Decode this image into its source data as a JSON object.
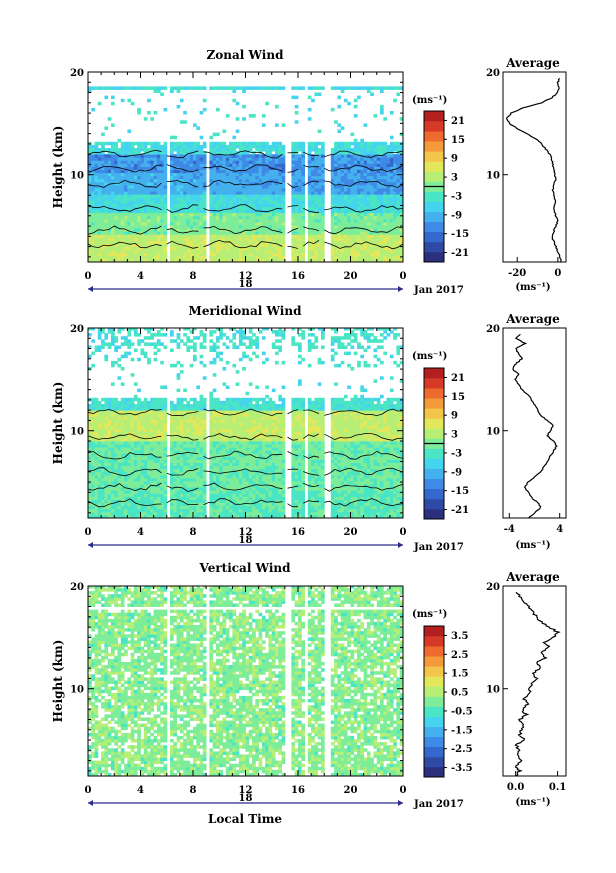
{
  "figure": {
    "local_time_label": "Local Time"
  },
  "colormap": [
    "#2b2f7e",
    "#2f4aa5",
    "#3468cc",
    "#3e8ae6",
    "#44b0ee",
    "#45d4ee",
    "#49e5c4",
    "#7eed9a",
    "#b6ee76",
    "#e3e85a",
    "#f3c548",
    "#f59a3a",
    "#ee6a2e",
    "#d63a27",
    "#b31f1f"
  ],
  "chart_data": [
    {
      "type": "heatmap",
      "name": "zonal",
      "title": "Zonal Wind",
      "ylabel": "Height (km)",
      "unit_label": "(ms⁻¹)",
      "xlim": [
        0,
        24
      ],
      "ylim": [
        1.5,
        20
      ],
      "x_ticks": [
        "0",
        "4",
        "8",
        "12",
        "16",
        "20",
        "0"
      ],
      "y_ticks": [
        "10",
        "20"
      ],
      "date_center": "18",
      "date_label": "Jan 2017",
      "colorbar_ticks": [
        "21",
        "15",
        "9",
        "3",
        "-3",
        "-9",
        "-15",
        "-21"
      ],
      "colorbar_range": [
        -24,
        24
      ],
      "average": {
        "title": "Average",
        "xlabel": "(ms⁻¹)",
        "x_ticks": [
          "-20",
          "0"
        ],
        "xlim": [
          -27,
          4
        ],
        "heights": [
          1.5,
          2,
          2.5,
          3,
          3.5,
          4,
          4.5,
          5,
          5.5,
          6,
          6.5,
          7,
          7.5,
          8,
          8.5,
          9,
          9.5,
          10,
          10.5,
          11,
          11.5,
          12,
          12.5,
          13,
          13.5,
          14,
          14.5,
          15,
          15.5,
          16,
          16.5,
          17,
          17.5,
          18,
          18.5,
          19,
          19.5
        ],
        "values": [
          1.5,
          1,
          0,
          -1,
          -2,
          -3,
          -2,
          -1,
          0,
          -1,
          -2,
          -1.5,
          -1,
          -2,
          -2.5,
          -2,
          -1,
          -1.5,
          -2,
          -2.5,
          -3,
          -4,
          -6,
          -8,
          -11,
          -15,
          -20,
          -24,
          -25,
          -23,
          -17,
          -8,
          -3,
          0,
          0.5,
          0,
          1
        ]
      }
    },
    {
      "type": "heatmap",
      "name": "meridional",
      "title": "Meridional Wind",
      "ylabel": "Height (km)",
      "unit_label": "(ms⁻¹)",
      "xlim": [
        0,
        24
      ],
      "ylim": [
        1.5,
        20
      ],
      "x_ticks": [
        "0",
        "4",
        "8",
        "12",
        "16",
        "20",
        "0"
      ],
      "y_ticks": [
        "10",
        "20"
      ],
      "date_center": "18",
      "date_label": "Jan 2017",
      "colorbar_ticks": [
        "21",
        "15",
        "9",
        "3",
        "-3",
        "-9",
        "-15",
        "-21"
      ],
      "colorbar_range": [
        -24,
        24
      ],
      "average": {
        "title": "Average",
        "xlabel": "(ms⁻¹)",
        "x_ticks": [
          "-4",
          "4"
        ],
        "xlim": [
          -5,
          5
        ],
        "heights": [
          1.5,
          2,
          2.5,
          3,
          3.5,
          4,
          4.5,
          5,
          5.5,
          6,
          6.5,
          7,
          7.5,
          8,
          8.5,
          9,
          9.5,
          10,
          10.5,
          11,
          11.5,
          12,
          12.5,
          13,
          13.5,
          14,
          14.5,
          15,
          15.5,
          16,
          16.5,
          17,
          17.5,
          18,
          18.5,
          19,
          19.5
        ],
        "values": [
          -1,
          0,
          1,
          0.5,
          -0.5,
          -1,
          -1.5,
          -1,
          0,
          1,
          1.5,
          2,
          2.5,
          3,
          3.5,
          3,
          2,
          2.5,
          3,
          2,
          1,
          0.5,
          0,
          -0.5,
          -1,
          -2,
          -2.5,
          -3,
          -2.5,
          -3.5,
          -3,
          -2,
          -2.5,
          -3,
          -1.5,
          -3,
          -2
        ]
      }
    },
    {
      "type": "heatmap",
      "name": "vertical",
      "title": "Vertical Wind",
      "ylabel": "Height (km)",
      "unit_label": "(ms⁻¹)",
      "xlim": [
        0,
        24
      ],
      "ylim": [
        1.5,
        20
      ],
      "x_ticks": [
        "0",
        "4",
        "8",
        "12",
        "16",
        "20",
        "0"
      ],
      "y_ticks": [
        "10",
        "20"
      ],
      "date_center": "18",
      "date_label": "Jan 2017",
      "colorbar_ticks": [
        "3.5",
        "2.5",
        "1.5",
        "0.5",
        "-0.5",
        "-1.5",
        "-2.5",
        "-3.5"
      ],
      "colorbar_range": [
        -4,
        4
      ],
      "average": {
        "title": "Average",
        "xlabel": "(ms⁻¹)",
        "x_ticks": [
          "0.0",
          "0.1"
        ],
        "xlim": [
          -0.03,
          0.12
        ],
        "heights": [
          1.5,
          2,
          2.5,
          3,
          3.5,
          4,
          4.5,
          5,
          5.5,
          6,
          6.5,
          7,
          7.5,
          8,
          8.5,
          9,
          9.5,
          10,
          10.5,
          11,
          11.5,
          12,
          12.5,
          13,
          13.5,
          14,
          14.5,
          15,
          15.5,
          16,
          16.5,
          17,
          17.5,
          18,
          18.5,
          19,
          19.5
        ],
        "values": [
          0.0,
          0.01,
          0.0,
          0.015,
          0.005,
          0.01,
          0.0,
          0.02,
          0.01,
          0.015,
          0.02,
          0.01,
          0.025,
          0.015,
          0.03,
          0.02,
          0.035,
          0.03,
          0.04,
          0.05,
          0.04,
          0.06,
          0.05,
          0.07,
          0.06,
          0.08,
          0.07,
          0.09,
          0.1,
          0.08,
          0.06,
          0.05,
          0.04,
          0.03,
          0.02,
          0.01,
          0.0
        ]
      }
    }
  ]
}
